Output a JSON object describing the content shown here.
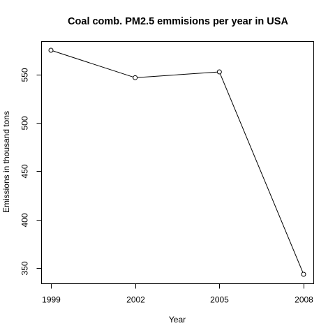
{
  "chart_data": {
    "type": "line",
    "title": "Coal comb. PM2.5 emmisions per year in USA",
    "xlabel": "Year",
    "ylabel": "Emissions in thousand tons",
    "x": [
      1999,
      2002,
      2005,
      2008
    ],
    "x_tick_labels": [
      "1999",
      "2002",
      "2005",
      "2008"
    ],
    "y_ticks": [
      350,
      400,
      450,
      500,
      550
    ],
    "xlim": [
      1999,
      2008
    ],
    "ylim": [
      343.4,
      575.2
    ],
    "series": [
      {
        "values": [
          575.2,
          546.8,
          552.8,
          343.4
        ],
        "color": "#000000",
        "marker": "open-circle"
      }
    ],
    "grid": false,
    "legend": "none"
  }
}
